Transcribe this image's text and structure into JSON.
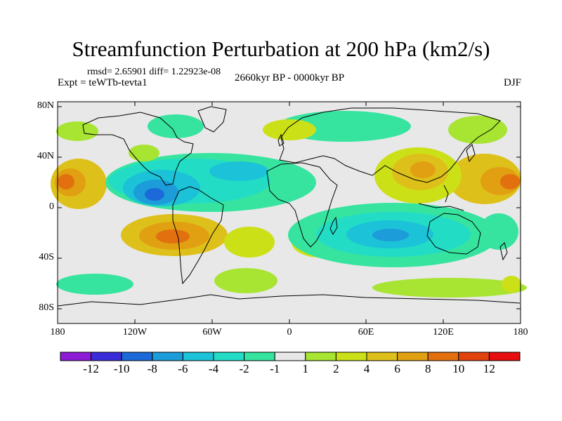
{
  "title": "Streamfunction Perturbation at 200 hPa (km2/s)",
  "meta": {
    "rmsd_line": "rmsd= 2.65901 diff= 1.22923e-08",
    "experiment": "Expt = teWTb-tevta1",
    "period": "2660kyr BP - 0000kyr BP",
    "season": "DJF"
  },
  "axes": {
    "lat_ticks": [
      "80N",
      "40N",
      "0",
      "40S",
      "80S"
    ],
    "lon_ticks": [
      "180",
      "120W",
      "60W",
      "0",
      "60E",
      "120E",
      "180"
    ],
    "lon_range": [
      -180,
      180
    ],
    "lat_range": [
      -90,
      90
    ]
  },
  "colorbar": {
    "labels": [
      "-12",
      "-10",
      "-8",
      "-6",
      "-4",
      "-2",
      "-1",
      "1",
      "2",
      "4",
      "6",
      "8",
      "10",
      "12"
    ],
    "colors": [
      "#8c1cd6",
      "#3a2cd8",
      "#1c6ad9",
      "#1c9cd8",
      "#1cc2d8",
      "#22dcc6",
      "#36e4a0",
      "#e8e8e8",
      "#a8e432",
      "#cce018",
      "#dec01a",
      "#e0a012",
      "#e2700e",
      "#e2420e",
      "#e60e0e"
    ]
  },
  "features": [
    {
      "lon": -165,
      "lat": 20,
      "value": 8
    },
    {
      "lon": 175,
      "lat": 20,
      "value": 8
    },
    {
      "lon": 105,
      "lat": 30,
      "value": 7
    },
    {
      "lon": -90,
      "lat": -24,
      "value": 8
    },
    {
      "lon": -105,
      "lat": 10,
      "value": -8
    },
    {
      "lon": -40,
      "lat": 15,
      "value": -5
    },
    {
      "lon": 70,
      "lat": -22,
      "value": -6
    },
    {
      "lon": 30,
      "lat": -20,
      "value": -3
    },
    {
      "lon": 125,
      "lat": -30,
      "value": -4
    },
    {
      "lon": 20,
      "lat": 70,
      "value": 2
    },
    {
      "lon": -95,
      "lat": 55,
      "value": -2
    },
    {
      "lon": -160,
      "lat": -55,
      "value": -2
    },
    {
      "lon": 40,
      "lat": -60,
      "value": 2
    },
    {
      "lon": 25,
      "lat": -40,
      "value": 4
    },
    {
      "lon": -30,
      "lat": -30,
      "value": 3
    },
    {
      "lon": 150,
      "lat": 70,
      "value": 2
    },
    {
      "lon": 170,
      "lat": -45,
      "value": -2
    }
  ]
}
